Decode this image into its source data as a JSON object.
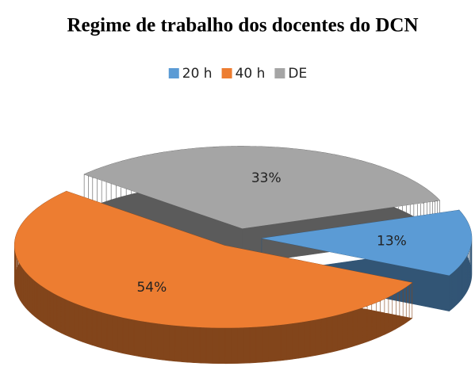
{
  "chart_data": {
    "type": "pie",
    "title": "Regime de trabalho dos docentes do DCN",
    "categories": [
      "20 h",
      "40 h",
      "DE"
    ],
    "values": [
      13,
      54,
      33
    ],
    "value_labels": [
      "13%",
      "54%",
      "33%"
    ],
    "colors": [
      "#5b9bd5",
      "#ed7d31",
      "#a5a5a5"
    ],
    "legend": "top"
  }
}
